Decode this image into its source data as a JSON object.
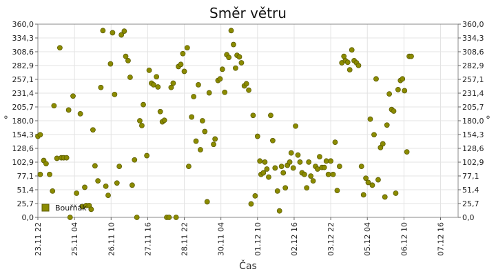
{
  "chart_data": {
    "type": "scatter",
    "title": "Směr větru",
    "xlabel": "Čas",
    "ylabel": "°",
    "ylim": [
      0,
      360
    ],
    "yticks": [
      "0,0",
      "25,7",
      "51,4",
      "77,1",
      "102,9",
      "128,6",
      "154,3",
      "180,0",
      "205,7",
      "231,4",
      "257,1",
      "282,9",
      "308,6",
      "334,3",
      "360,0"
    ],
    "xlim": [
      0,
      14.35
    ],
    "xticks": [
      {
        "x": 0,
        "label": "23.11 22"
      },
      {
        "x": 1.25,
        "label": "25.11 04"
      },
      {
        "x": 2.5,
        "label": "26.11 10"
      },
      {
        "x": 3.75,
        "label": "27.11 16"
      },
      {
        "x": 5.0,
        "label": "28.11 22"
      },
      {
        "x": 6.25,
        "label": "30.11 04"
      },
      {
        "x": 7.5,
        "label": "01.12 10"
      },
      {
        "x": 8.75,
        "label": "02.12 16"
      },
      {
        "x": 10.0,
        "label": "03.12 22"
      },
      {
        "x": 11.25,
        "label": "05.12 04"
      },
      {
        "x": 12.5,
        "label": "06.12 10"
      },
      {
        "x": 13.75,
        "label": "07.12 16"
      }
    ],
    "grid": true,
    "legend_position": "bottom-left",
    "colors": {
      "marker": "#8b8b00",
      "marker_edge": "#5c5c00"
    },
    "series": [
      {
        "name": "Bouřňák",
        "points": [
          [
            0.0,
            151
          ],
          [
            0.08,
            80
          ],
          [
            0.08,
            154
          ],
          [
            0.2,
            106
          ],
          [
            0.28,
            100
          ],
          [
            0.4,
            80
          ],
          [
            0.5,
            49
          ],
          [
            0.55,
            208
          ],
          [
            0.65,
            110
          ],
          [
            0.75,
            316
          ],
          [
            0.8,
            111
          ],
          [
            0.88,
            111
          ],
          [
            0.98,
            111
          ],
          [
            1.05,
            200
          ],
          [
            1.1,
            0
          ],
          [
            1.2,
            226
          ],
          [
            1.32,
            45
          ],
          [
            1.45,
            193
          ],
          [
            1.52,
            20
          ],
          [
            1.6,
            56
          ],
          [
            1.65,
            22
          ],
          [
            1.75,
            22
          ],
          [
            1.82,
            15
          ],
          [
            1.88,
            163
          ],
          [
            1.95,
            96
          ],
          [
            2.05,
            68
          ],
          [
            2.15,
            242
          ],
          [
            2.22,
            348
          ],
          [
            2.32,
            58
          ],
          [
            2.4,
            41
          ],
          [
            2.48,
            286
          ],
          [
            2.55,
            344
          ],
          [
            2.62,
            229
          ],
          [
            2.7,
            64
          ],
          [
            2.78,
            95
          ],
          [
            2.85,
            340
          ],
          [
            2.95,
            347
          ],
          [
            3.0,
            300
          ],
          [
            3.08,
            292
          ],
          [
            3.15,
            261
          ],
          [
            3.22,
            60
          ],
          [
            3.3,
            107
          ],
          [
            3.38,
            0
          ],
          [
            3.48,
            180
          ],
          [
            3.55,
            171
          ],
          [
            3.6,
            210
          ],
          [
            3.72,
            115
          ],
          [
            3.8,
            274
          ],
          [
            3.88,
            250
          ],
          [
            3.95,
            247
          ],
          [
            4.05,
            262
          ],
          [
            4.1,
            243
          ],
          [
            4.18,
            197
          ],
          [
            4.25,
            178
          ],
          [
            4.32,
            181
          ],
          [
            4.4,
            0
          ],
          [
            4.48,
            0
          ],
          [
            4.55,
            242
          ],
          [
            4.62,
            250
          ],
          [
            4.72,
            0
          ],
          [
            4.8,
            281
          ],
          [
            4.88,
            285
          ],
          [
            4.95,
            305
          ],
          [
            5.0,
            272
          ],
          [
            5.1,
            316
          ],
          [
            5.15,
            95
          ],
          [
            5.25,
            187
          ],
          [
            5.32,
            225
          ],
          [
            5.4,
            142
          ],
          [
            5.48,
            247
          ],
          [
            5.55,
            126
          ],
          [
            5.62,
            180
          ],
          [
            5.7,
            160
          ],
          [
            5.78,
            29
          ],
          [
            5.85,
            232
          ],
          [
            6.0,
            136
          ],
          [
            6.05,
            146
          ],
          [
            6.15,
            255
          ],
          [
            6.22,
            258
          ],
          [
            6.3,
            276
          ],
          [
            6.38,
            233
          ],
          [
            6.45,
            303
          ],
          [
            6.52,
            298
          ],
          [
            6.6,
            348
          ],
          [
            6.68,
            322
          ],
          [
            6.75,
            278
          ],
          [
            6.8,
            302
          ],
          [
            6.88,
            299
          ],
          [
            6.95,
            288
          ],
          [
            7.05,
            245
          ],
          [
            7.12,
            249
          ],
          [
            7.2,
            237
          ],
          [
            7.28,
            25
          ],
          [
            7.35,
            190
          ],
          [
            7.42,
            40
          ],
          [
            7.5,
            151
          ],
          [
            7.58,
            105
          ],
          [
            7.62,
            80
          ],
          [
            7.7,
            83
          ],
          [
            7.75,
            103
          ],
          [
            7.82,
            90
          ],
          [
            7.88,
            75
          ],
          [
            7.95,
            190
          ],
          [
            8.02,
            143
          ],
          [
            8.1,
            92
          ],
          [
            8.18,
            49
          ],
          [
            8.25,
            12
          ],
          [
            8.32,
            95
          ],
          [
            8.38,
            83
          ],
          [
            8.45,
            55
          ],
          [
            8.52,
            97
          ],
          [
            8.6,
            103
          ],
          [
            8.65,
            120
          ],
          [
            8.72,
            92
          ],
          [
            8.8,
            170
          ],
          [
            8.88,
            116
          ],
          [
            8.95,
            103
          ],
          [
            9.02,
            83
          ],
          [
            9.1,
            80
          ],
          [
            9.18,
            55
          ],
          [
            9.25,
            103
          ],
          [
            9.32,
            77
          ],
          [
            9.4,
            68
          ],
          [
            9.48,
            95
          ],
          [
            9.55,
            90
          ],
          [
            9.62,
            113
          ],
          [
            9.7,
            93
          ],
          [
            9.78,
            93
          ],
          [
            9.85,
            105
          ],
          [
            9.92,
            80
          ],
          [
            10.0,
            105
          ],
          [
            10.08,
            80
          ],
          [
            10.15,
            140
          ],
          [
            10.22,
            50
          ],
          [
            10.3,
            95
          ],
          [
            10.38,
            288
          ],
          [
            10.45,
            300
          ],
          [
            10.5,
            292
          ],
          [
            10.58,
            289
          ],
          [
            10.65,
            275
          ],
          [
            10.72,
            312
          ],
          [
            10.8,
            292
          ],
          [
            10.88,
            288
          ],
          [
            10.95,
            283
          ],
          [
            11.05,
            95
          ],
          [
            11.12,
            42
          ],
          [
            11.2,
            73
          ],
          [
            11.28,
            65
          ],
          [
            11.35,
            183
          ],
          [
            11.42,
            60
          ],
          [
            11.48,
            154
          ],
          [
            11.55,
            258
          ],
          [
            11.62,
            70
          ],
          [
            11.7,
            130
          ],
          [
            11.78,
            137
          ],
          [
            11.85,
            38
          ],
          [
            11.92,
            172
          ],
          [
            12.0,
            230
          ],
          [
            12.08,
            201
          ],
          [
            12.15,
            198
          ],
          [
            12.22,
            45
          ],
          [
            12.3,
            238
          ],
          [
            12.38,
            255
          ],
          [
            12.45,
            258
          ],
          [
            12.52,
            236
          ],
          [
            12.6,
            122
          ],
          [
            12.68,
            300
          ],
          [
            12.75,
            300
          ]
        ]
      }
    ]
  }
}
